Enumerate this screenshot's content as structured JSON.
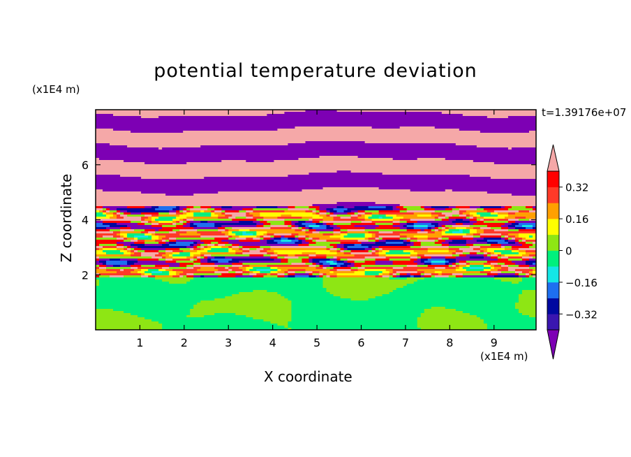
{
  "title": "potential temperature deviation",
  "time_label": "t=1.39176e+07",
  "chart_data": {
    "type": "heatmap",
    "title": "potential temperature deviation",
    "xlabel": "X coordinate",
    "ylabel": "Z coordinate",
    "x_unit": "(x1E4 m)",
    "z_unit": "(x1E4 m)",
    "xlim": [
      0,
      9.95
    ],
    "ylim": [
      0,
      8
    ],
    "x_ticks": [
      "1",
      "2",
      "3",
      "4",
      "5",
      "6",
      "7",
      "8",
      "9"
    ],
    "y_ticks": [
      "2",
      "4",
      "6"
    ],
    "colorbar": {
      "tick_labels": [
        "0.32",
        "0.16",
        "0",
        "-0.16",
        "-0.32"
      ],
      "levels": [
        -0.4,
        -0.32,
        -0.24,
        -0.16,
        -0.08,
        0,
        0.08,
        0.16,
        0.24,
        0.32,
        0.4
      ],
      "colors": [
        "#7d00b4",
        "#3a16b0",
        "#0008a0",
        "#1e6ff0",
        "#14e6e6",
        "#00f07d",
        "#8ee614",
        "#ffff00",
        "#ffa000",
        "#ff3a28",
        "#ff0000",
        "#f5a8a8"
      ],
      "extend": "both"
    },
    "regions": [
      {
        "z_range": [
          0,
          1.9
        ],
        "description_colors": [
          "#00f07d",
          "#8ee614"
        ]
      },
      {
        "z_range": [
          1.9,
          4.5
        ],
        "description_colors": [
          "#7d00b4",
          "#f5a8a8",
          "#ff3a28",
          "#ffff00",
          "#14e6e6",
          "#1e6ff0"
        ]
      },
      {
        "z_range": [
          4.5,
          8
        ],
        "description_colors": [
          "#7d00b4",
          "#f5a8a8"
        ]
      }
    ]
  }
}
